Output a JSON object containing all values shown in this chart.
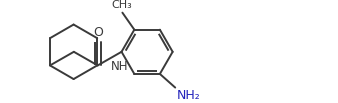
{
  "bg_color": "#ffffff",
  "line_color": "#3a3a3a",
  "o_color": "#3a3a3a",
  "nh_color": "#3a3a3a",
  "nh2_color": "#2222bb",
  "me_color": "#3a3a3a",
  "lw": 1.4,
  "figsize": [
    3.38,
    1.03
  ],
  "dpi": 100,
  "xlim": [
    0,
    338
  ],
  "ylim": [
    0,
    103
  ]
}
